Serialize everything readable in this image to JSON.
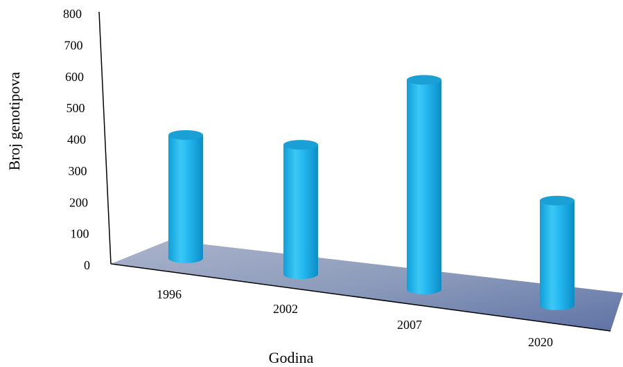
{
  "chart_data": {
    "type": "bar",
    "style": "3d-cylinder",
    "categories": [
      "1996",
      "2002",
      "2007",
      "2020"
    ],
    "values": [
      400,
      420,
      680,
      340
    ],
    "xlabel": "Godina",
    "ylabel": "Broj genotipova",
    "ylim": [
      0,
      800
    ],
    "yticks": [
      "0",
      "100",
      "200",
      "300",
      "400",
      "500",
      "600",
      "700",
      "800"
    ],
    "grid": false,
    "legend": "none",
    "colors": {
      "bar": "#1ab2ec",
      "bar_top": "#1ba0d6",
      "floor": "#8c9bbb",
      "axis": "#000000"
    }
  }
}
